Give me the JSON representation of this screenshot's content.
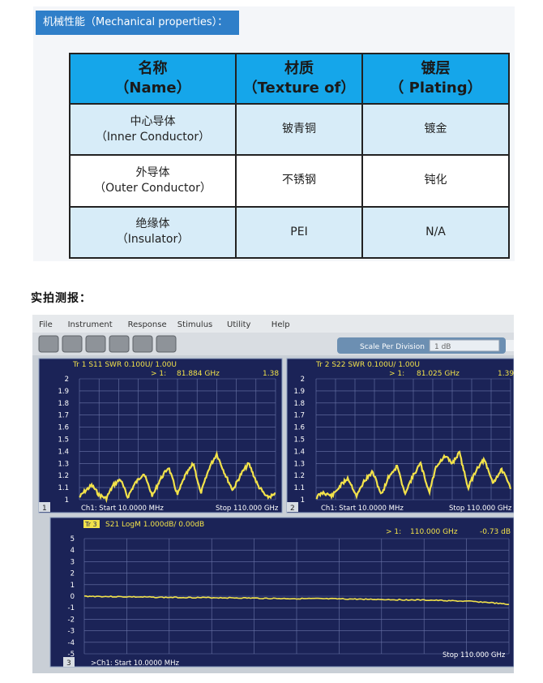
{
  "section": {
    "title": "机械性能（Mechanical properties）："
  },
  "table": {
    "headers": [
      {
        "zh": "名称",
        "en": "（Name）"
      },
      {
        "zh": "材质",
        "en": "（Texture of）"
      },
      {
        "zh": "镀层",
        "en": "（ Plating）"
      }
    ],
    "rows": [
      {
        "name_zh": "中心导体",
        "name_en": "（Inner Conductor）",
        "texture": "铍青铜",
        "plating": "镀金"
      },
      {
        "name_zh": "外导体",
        "name_en": "（Outer Conductor）",
        "texture": "不锈钢",
        "plating": "钝化"
      },
      {
        "name_zh": "绝缘体",
        "name_en": "（Insulator）",
        "texture": "PEI",
        "plating": "N/A"
      }
    ]
  },
  "photo_label": "实拍测报：",
  "analyzer": {
    "menu": [
      "File",
      "Instrument",
      "Response",
      "Stimulus",
      "Utility",
      "Help"
    ],
    "toolbar_icons": [
      "undo-icon",
      "redo-icon",
      "marker-icon",
      "trace-icon",
      "delete-icon",
      "zoom-icon"
    ],
    "scale_label": "Scale Per Division",
    "scale_value": "1 dB",
    "trace1": {
      "title": "Tr 1  S11 SWR 0.100U/ 1.00U",
      "marker": "> 1:",
      "marker_freq": "81.884 GHz",
      "marker_value": "1.38",
      "start": "Ch1: Start  10.0000 MHz",
      "stop": "Stop  110.000 GHz",
      "number": "1",
      "yticks": [
        "2",
        "1.9",
        "1.8",
        "1.7",
        "1.6",
        "1.5",
        "1.4",
        "1.3",
        "1.2",
        "1.1",
        "1"
      ]
    },
    "trace2": {
      "title": "Tr 2  S22 SWR 0.100U/ 1.00U",
      "marker": "> 1:",
      "marker_freq": "81.025 GHz",
      "marker_value": "1.39",
      "start": "Ch1: Start  10.0000 MHz",
      "stop": "Stop  110.000 GHz",
      "number": "2",
      "yticks": [
        "2",
        "1.9",
        "1.8",
        "1.7",
        "1.6",
        "1.5",
        "1.4",
        "1.3",
        "1.2",
        "1.1",
        "1"
      ]
    },
    "trace3": {
      "title": "S21 LogM 1.000dB/ 0.00dB",
      "tag": "Tr 3",
      "marker": "> 1:",
      "marker_freq": "110.000  GHz",
      "marker_value": "-0.73 dB",
      "start": ">Ch1: Start  10.0000 MHz",
      "stop": "Stop  110.000 GHz",
      "number": "3",
      "yticks": [
        "5",
        "4",
        "3",
        "2",
        "1",
        "0",
        "-1",
        "-2",
        "-3",
        "-4",
        "-5"
      ]
    }
  },
  "chart_data": [
    {
      "type": "line",
      "title": "Tr 1  S11 SWR 0.100U/ 1.00U",
      "xlim": [
        0.01,
        110
      ],
      "ylim": [
        1,
        2
      ],
      "series": [
        {
          "name": "S11 SWR",
          "x": [
            0.01,
            3,
            7,
            11,
            15,
            19,
            23,
            27,
            31,
            36,
            41,
            45,
            50,
            55,
            59,
            64,
            68,
            73,
            77,
            82,
            86,
            91,
            95,
            100,
            105,
            110
          ],
          "y": [
            1.02,
            1.07,
            1.12,
            1.04,
            1.01,
            1.12,
            1.17,
            1.02,
            1.13,
            1.22,
            1.03,
            1.16,
            1.27,
            1.04,
            1.19,
            1.3,
            1.05,
            1.27,
            1.38,
            1.2,
            1.08,
            1.22,
            1.3,
            1.12,
            1.02,
            1.04
          ]
        }
      ]
    },
    {
      "type": "line",
      "title": "Tr 2  S22 SWR 0.100U/ 1.00U",
      "xlim": [
        0.01,
        110
      ],
      "ylim": [
        1,
        2
      ],
      "series": [
        {
          "name": "S22 SWR",
          "x": [
            0.01,
            4,
            9,
            14,
            18,
            23,
            27,
            32,
            37,
            41,
            46,
            50,
            55,
            59,
            64,
            68,
            73,
            77,
            81,
            86,
            91,
            95,
            100,
            105,
            110
          ],
          "y": [
            1.02,
            1.06,
            1.03,
            1.12,
            1.18,
            1.03,
            1.15,
            1.23,
            1.04,
            1.19,
            1.28,
            1.05,
            1.2,
            1.3,
            1.06,
            1.28,
            1.36,
            1.3,
            1.39,
            1.1,
            1.26,
            1.33,
            1.14,
            1.25,
            1.1
          ]
        }
      ]
    },
    {
      "type": "line",
      "title": "S21 LogM 1.000dB/ 0.00dB",
      "xlim": [
        0.01,
        110
      ],
      "ylim": [
        -5,
        5
      ],
      "series": [
        {
          "name": "S21 LogM",
          "x": [
            0.01,
            10,
            20,
            30,
            40,
            50,
            60,
            70,
            80,
            90,
            100,
            105,
            110
          ],
          "y": [
            0.0,
            -0.05,
            -0.1,
            -0.12,
            -0.15,
            -0.2,
            -0.22,
            -0.25,
            -0.3,
            -0.35,
            -0.45,
            -0.55,
            -0.73
          ]
        }
      ]
    }
  ]
}
